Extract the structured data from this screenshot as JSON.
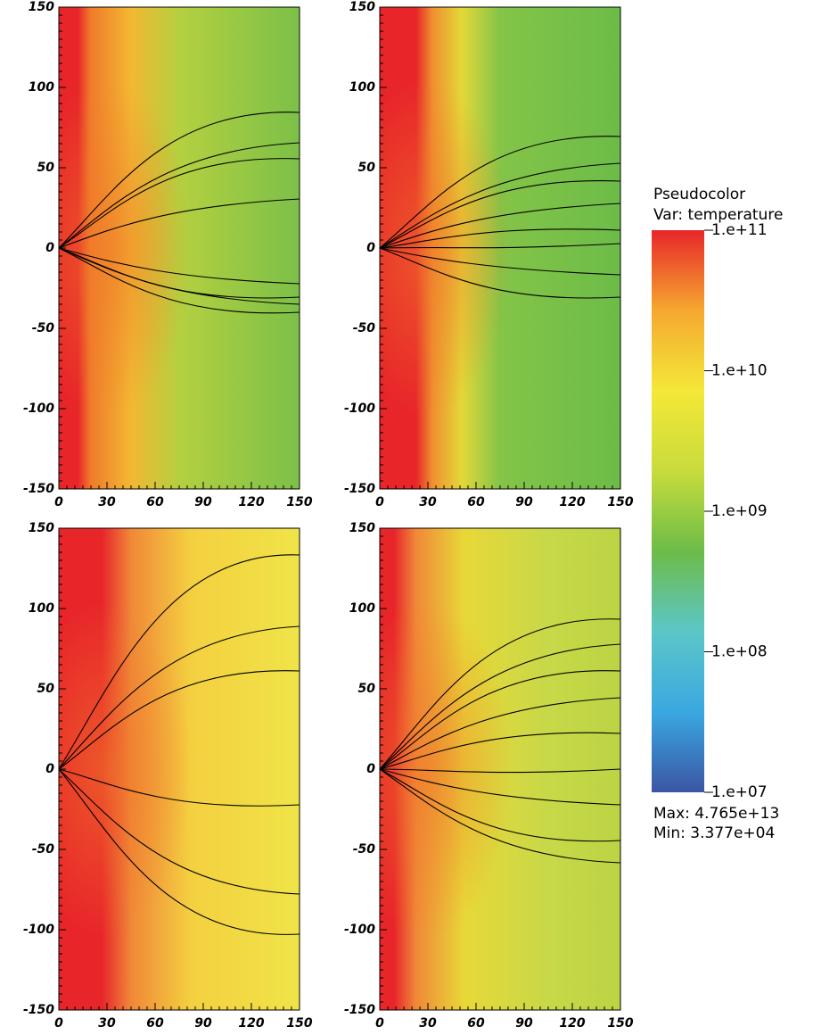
{
  "chart_data": [
    {
      "type": "heatmap",
      "xlim": [
        0,
        150
      ],
      "ylim": [
        -150,
        150
      ],
      "xticks": [
        0,
        30,
        60,
        90,
        120,
        150
      ],
      "yticks": [
        -150,
        -100,
        -50,
        0,
        50,
        100,
        150
      ]
    },
    {
      "type": "heatmap",
      "xlim": [
        0,
        150
      ],
      "ylim": [
        -150,
        150
      ],
      "xticks": [
        0,
        30,
        60,
        90,
        120,
        150
      ],
      "yticks": [
        -150,
        -100,
        -50,
        0,
        50,
        100,
        150
      ]
    },
    {
      "type": "heatmap",
      "xlim": [
        0,
        150
      ],
      "ylim": [
        -150,
        150
      ],
      "xticks": [
        0,
        30,
        60,
        90,
        120,
        150
      ],
      "yticks": [
        -150,
        -100,
        -50,
        0,
        50,
        100,
        150
      ]
    },
    {
      "type": "heatmap",
      "xlim": [
        0,
        150
      ],
      "ylim": [
        -150,
        150
      ],
      "xticks": [
        0,
        30,
        60,
        90,
        120,
        150
      ],
      "yticks": [
        -150,
        -100,
        -50,
        0,
        50,
        100,
        150
      ]
    }
  ],
  "colorbar": {
    "title": "Pseudocolor",
    "subtitle": "Var: temperature",
    "log_scale": true,
    "lim": [
      10000000,
      100000000000
    ],
    "ticks": [
      {
        "value": 100000000000,
        "label": "1.e+11"
      },
      {
        "value": 10000000000,
        "label": "1.e+10"
      },
      {
        "value": 1000000000,
        "label": "1.e+09"
      },
      {
        "value": 100000000,
        "label": "1.e+08"
      },
      {
        "value": 10000000,
        "label": "1.e+07"
      }
    ],
    "colors": [
      "#3b55a4",
      "#3aa8e0",
      "#5cc6c8",
      "#6cbc48",
      "#c8dc3c",
      "#f4e838",
      "#f5a830",
      "#e8262a"
    ],
    "annotations": [
      "Max:  4.765e+13",
      "Min:  3.377e+04"
    ]
  }
}
